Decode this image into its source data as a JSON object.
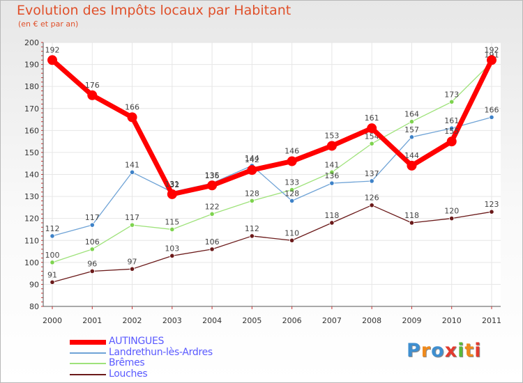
{
  "chart_data": {
    "type": "line",
    "title": "Evolution des Impôts locaux par Habitant",
    "subtitle": "(en € et par an)",
    "xlabel": "",
    "ylabel": "",
    "ylim": [
      80,
      200
    ],
    "yticks": [
      80,
      90,
      100,
      110,
      120,
      130,
      140,
      150,
      160,
      170,
      180,
      190,
      200
    ],
    "categories": [
      "2000",
      "2001",
      "2002",
      "2003",
      "2004",
      "2005",
      "2006",
      "2007",
      "2008",
      "2009",
      "2010",
      "2011"
    ],
    "series": [
      {
        "name": "AUTINGUES",
        "values": [
          192,
          176,
          166,
          131,
          135,
          142,
          146,
          153,
          161,
          144,
          155,
          192
        ],
        "labels": [
          "192",
          "176",
          "166",
          "131",
          "135",
          "142",
          "146",
          "153",
          "161",
          "144",
          "155",
          "192"
        ],
        "color": "#ff0000",
        "markerColor": "#ff0000"
      },
      {
        "name": "Landrethun-lès-Ardres",
        "values": [
          112,
          117,
          141,
          132,
          136,
          144,
          128,
          136,
          137,
          157,
          161,
          166
        ],
        "labels": [
          "112",
          "117",
          "141",
          "132",
          "136",
          "144",
          "128",
          "136",
          "137",
          "157",
          "161",
          "166"
        ],
        "color": "#6fa3d6",
        "markerColor": "#3e82c8"
      },
      {
        "name": "Brêmes",
        "values": [
          100,
          106,
          117,
          115,
          122,
          128,
          133,
          141,
          154,
          164,
          173,
          191
        ],
        "labels": [
          "100",
          "106",
          "117",
          "115",
          "122",
          "128",
          "133",
          "141",
          "154",
          "164",
          "173",
          "191"
        ],
        "color": "#9ee27a",
        "markerColor": "#7ed34f"
      },
      {
        "name": "Louches",
        "values": [
          91,
          96,
          97,
          103,
          106,
          112,
          110,
          118,
          126,
          118,
          120,
          123
        ],
        "labels": [
          "91",
          "96",
          "97",
          "103",
          "106",
          "112",
          "110",
          "118",
          "126",
          "118",
          "120",
          "123"
        ],
        "color": "#6b1a1a",
        "markerColor": "#6b1a1a"
      }
    ]
  },
  "brand": {
    "letters": [
      "P",
      "r",
      "o",
      "x",
      "i",
      "t",
      "i"
    ],
    "colors": [
      "#3f8fd0",
      "#f08a1c",
      "#3f8fd0",
      "#e33b2e",
      "#59b93a",
      "#f08a1c",
      "#e33b2e"
    ]
  }
}
